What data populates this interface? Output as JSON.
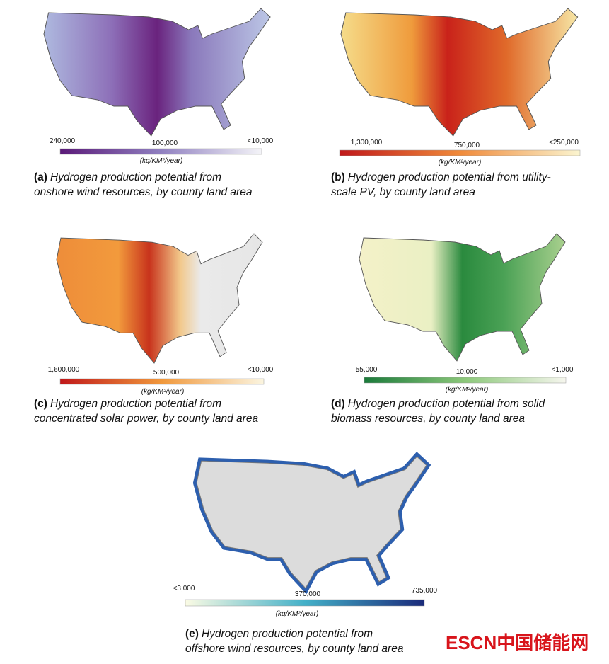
{
  "panels": [
    {
      "label": "(a)",
      "caption": [
        "Hydrogen production potential from",
        "onshore wind resources, by county land area"
      ],
      "legend": {
        "left": "240,000",
        "middle": "100,000",
        "right": "<10,000",
        "unit": "(kg/KM²/year)"
      }
    },
    {
      "label": "(b)",
      "caption": [
        "Hydrogen production potential from  utility-",
        "scale PV, by county land area"
      ],
      "legend": {
        "left": "1,300,000",
        "middle": "750,000",
        "right": "<250,000",
        "unit": "(kg/KM²/year)"
      }
    },
    {
      "label": "(c)",
      "caption": [
        "Hydrogen production potential from",
        "concentrated solar power, by county land area"
      ],
      "legend": {
        "left": "1,600,000",
        "middle": "500,000",
        "right": "<10,000",
        "unit": "(kg/KM²/year)"
      }
    },
    {
      "label": "(d)",
      "caption": [
        "Hydrogen production potential from solid",
        "biomass resources, by county land area"
      ],
      "legend": {
        "left": "55,000",
        "middle": "10,000",
        "right": "<1,000",
        "unit": "(kg/KM²/year)"
      }
    },
    {
      "label": "(e)",
      "caption": [
        "Hydrogen production potential from",
        "offshore wind resources, by county land area"
      ],
      "legend": {
        "left": "<3,000",
        "middle": "370,000",
        "right": "735,000",
        "unit": "(kg/KM²/year)"
      }
    }
  ],
  "watermark": "ESCN中国储能网"
}
